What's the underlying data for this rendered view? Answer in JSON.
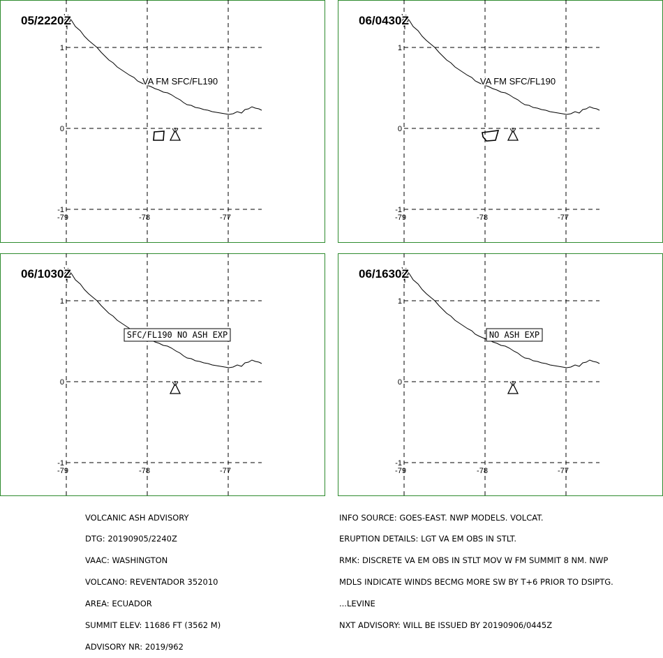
{
  "colors": {
    "frame": "#2e8b2e",
    "ink": "#000000",
    "background": "#ffffff"
  },
  "panels": [
    {
      "time": "05/2220Z",
      "label": "VA FM SFC/FL190",
      "label_boxed": false,
      "ash_polygon": "square",
      "lat_labels": [
        "1",
        "0",
        "-1"
      ],
      "lon_labels": [
        "-79",
        "-78",
        "-77"
      ]
    },
    {
      "time": "06/0430Z",
      "label": "VA FM SFC/FL190",
      "label_boxed": false,
      "ash_polygon": "trapezoid",
      "lat_labels": [
        "1",
        "0",
        "-1"
      ],
      "lon_labels": [
        "-79",
        "-78",
        "-77"
      ]
    },
    {
      "time": "06/1030Z",
      "label": "SFC/FL190 NO ASH EXP",
      "label_boxed": true,
      "ash_polygon": "none",
      "lat_labels": [
        "1",
        "0",
        "-1"
      ],
      "lon_labels": [
        "-79",
        "-78",
        "-77"
      ]
    },
    {
      "time": "06/1630Z",
      "label": "NO ASH EXP",
      "label_boxed": true,
      "ash_polygon": "none",
      "lat_labels": [
        "1",
        "0",
        "-1"
      ],
      "lon_labels": [
        "-79",
        "-78",
        "-77"
      ]
    }
  ],
  "volcano_icon": "volcano-triangle-icon",
  "advisory_left": [
    "VOLCANIC ASH ADVISORY",
    "DTG: 20190905/2240Z",
    "VAAC: WASHINGTON",
    "VOLCANO: REVENTADOR 352010",
    "AREA: ECUADOR",
    "SUMMIT ELEV: 11686 FT (3562 M)",
    "ADVISORY NR: 2019/962"
  ],
  "advisory_right": [
    "INFO SOURCE: GOES-EAST. NWP MODELS. VOLCAT.",
    "ERUPTION DETAILS: LGT VA EM OBS IN STLT.",
    "RMK: DISCRETE VA EM OBS IN STLT MOV W FM SUMMIT 8 NM. NWP",
    "MDLS INDICATE WINDS BECMG MORE SW BY T+6 PRIOR TO DSIPTG.",
    "...LEVINE",
    "NXT ADVISORY: WILL BE ISSUED BY 20190906/0445Z"
  ]
}
